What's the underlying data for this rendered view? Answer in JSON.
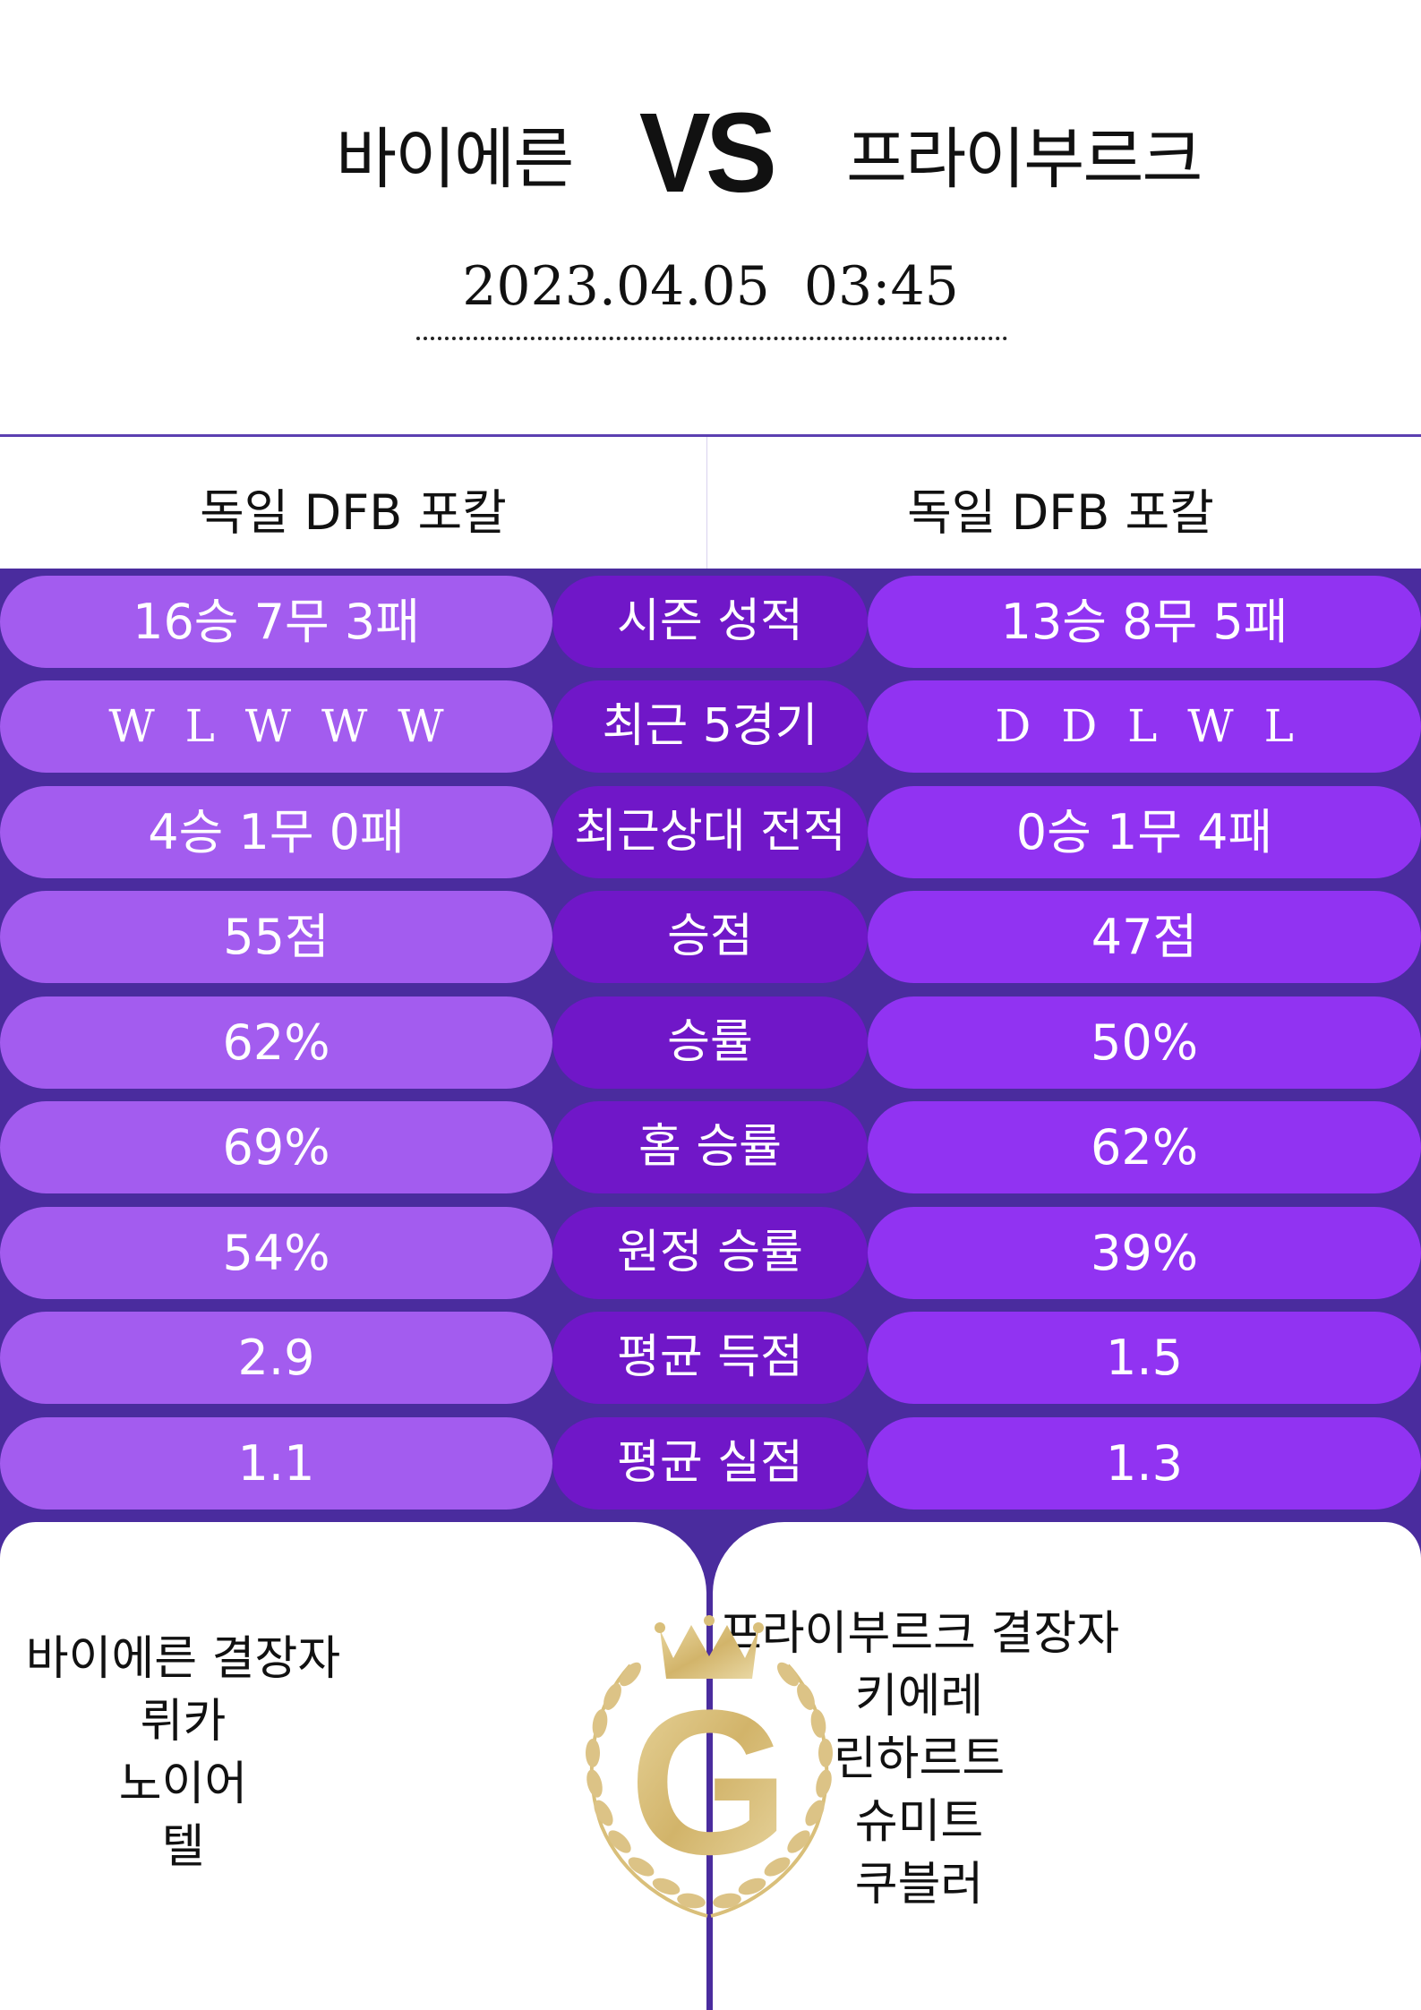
{
  "match": {
    "home_team": "바이에른",
    "vs_label": "VS",
    "away_team": "프라이부르크",
    "datetime": "2023.04.05  03:45"
  },
  "league": {
    "home": "독일 DFB 포칼",
    "away": "독일 DFB 포칼"
  },
  "stats": [
    {
      "label": "시즌 성적",
      "home": "16승 7무 3패",
      "away": "13승 8무 5패"
    },
    {
      "label": "최근 5경기",
      "home": "W L W W W",
      "away": "D D L W L"
    },
    {
      "label": "최근상대 전적",
      "home": "4승 1무 0패",
      "away": "0승 1무 4패"
    },
    {
      "label": "승점",
      "home": "55점",
      "away": "47점"
    },
    {
      "label": "승률",
      "home": "62%",
      "away": "50%"
    },
    {
      "label": "홈 승률",
      "home": "69%",
      "away": "62%"
    },
    {
      "label": "원정 승률",
      "home": "54%",
      "away": "39%"
    },
    {
      "label": "평균 득점",
      "home": "2.9",
      "away": "1.5"
    },
    {
      "label": "평균 실점",
      "home": "1.1",
      "away": "1.3"
    }
  ],
  "absent": {
    "home": [
      "바이에른 결장자",
      "뤼카",
      "노이어",
      "텔"
    ],
    "away": [
      "프라이부르크 결장자",
      "키에레",
      "린하르트",
      "슈미트",
      "쿠블러"
    ]
  },
  "emblem": {
    "letter": "G",
    "icon": "crown-laurel-emblem",
    "color": "#d9bf7a"
  },
  "colors": {
    "panel_bg": "#4a2c9e",
    "home_pill": "#a35cef",
    "label_pill": "#7017c8",
    "away_pill": "#9133f2"
  }
}
